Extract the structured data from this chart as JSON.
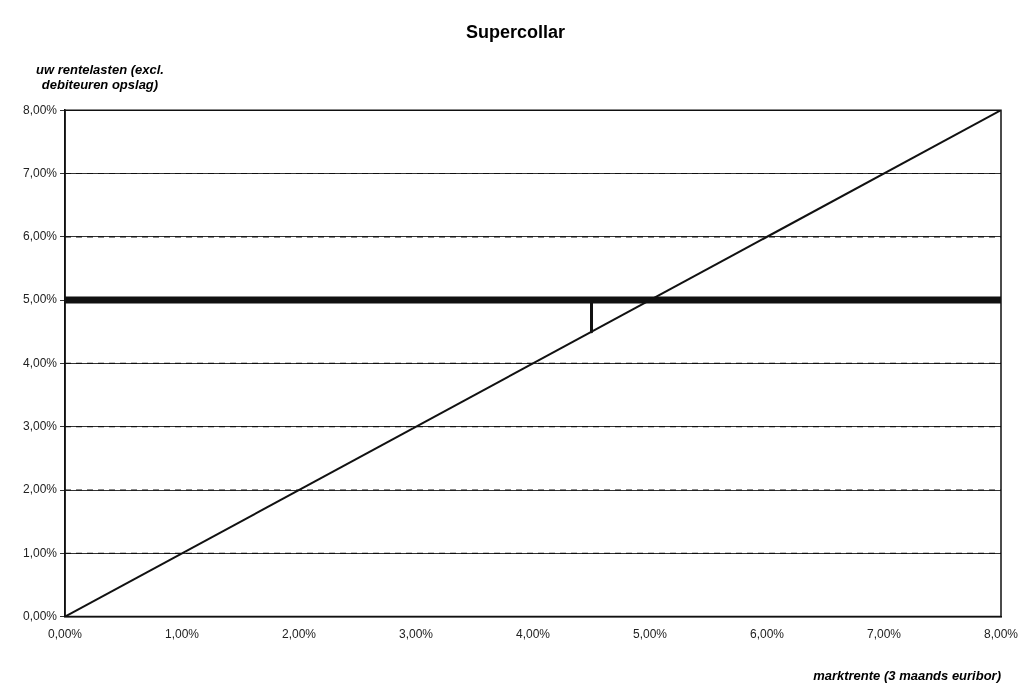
{
  "chart_data": {
    "type": "line",
    "title": "Supercollar",
    "xlabel": "marktrente (3 maands euribor)",
    "ylabel": "uw rentelasten (excl. debiteuren opslag)",
    "xlim": [
      0,
      8
    ],
    "ylim": [
      0,
      8
    ],
    "xticks": [
      {
        "value": 0,
        "label": "0,00%"
      },
      {
        "value": 1,
        "label": "1,00%"
      },
      {
        "value": 2,
        "label": "2,00%"
      },
      {
        "value": 3,
        "label": "3,00%"
      },
      {
        "value": 4,
        "label": "4,00%"
      },
      {
        "value": 5,
        "label": "5,00%"
      },
      {
        "value": 6,
        "label": "6,00%"
      },
      {
        "value": 7,
        "label": "7,00%"
      },
      {
        "value": 8,
        "label": "8,00%"
      }
    ],
    "yticks": [
      {
        "value": 0,
        "label": "0,00%"
      },
      {
        "value": 1,
        "label": "1,00%"
      },
      {
        "value": 2,
        "label": "2,00%"
      },
      {
        "value": 3,
        "label": "3,00%"
      },
      {
        "value": 4,
        "label": "4,00%"
      },
      {
        "value": 5,
        "label": "5,00%"
      },
      {
        "value": 6,
        "label": "6,00%"
      },
      {
        "value": 7,
        "label": "7,00%"
      },
      {
        "value": 8,
        "label": "8,00%"
      }
    ],
    "grid": "y",
    "legend": false,
    "marker": "none",
    "line_style": "solid",
    "series": [
      {
        "color": "#111111",
        "x": [
          0,
          8
        ],
        "values": [
          0,
          8
        ]
      },
      {
        "color": "#111111",
        "x": [
          0,
          4.5,
          8
        ],
        "values": [
          5,
          5,
          5
        ]
      },
      {
        "color": "#111111",
        "x": [
          4.5,
          4.5
        ],
        "values": [
          5,
          4.5
        ]
      }
    ]
  }
}
